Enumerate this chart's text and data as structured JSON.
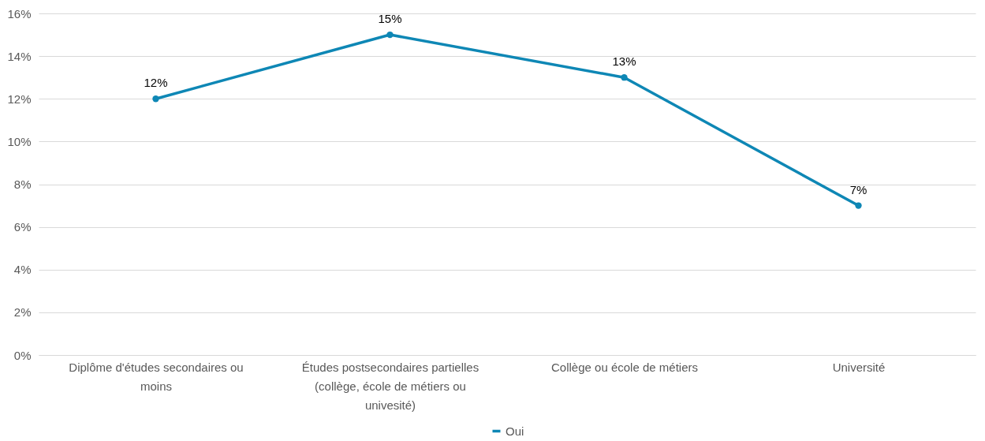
{
  "chart_data": {
    "type": "line",
    "categories": [
      "Diplôme d'études secondaires ou moins",
      "Études postsecondaires partielles (collège, école de métiers ou univesité)",
      "Collège ou école de métiers",
      "Université"
    ],
    "series": [
      {
        "name": "Oui",
        "color": "#0e87b5",
        "values": [
          12,
          15,
          13,
          7
        ],
        "value_labels": [
          "12%",
          "15%",
          "13%",
          "7%"
        ]
      }
    ],
    "ylim": [
      0,
      16
    ],
    "yticks": [
      {
        "value": 0,
        "label": "0%"
      },
      {
        "value": 2,
        "label": "2%"
      },
      {
        "value": 4,
        "label": "4%"
      },
      {
        "value": 6,
        "label": "6%"
      },
      {
        "value": 8,
        "label": "8%"
      },
      {
        "value": 10,
        "label": "10%"
      },
      {
        "value": 12,
        "label": "12%"
      },
      {
        "value": 14,
        "label": "14%"
      },
      {
        "value": 16,
        "label": "16%"
      }
    ],
    "grid": "y",
    "legend": "bottom",
    "marker": "circle",
    "line_style": "solid"
  }
}
